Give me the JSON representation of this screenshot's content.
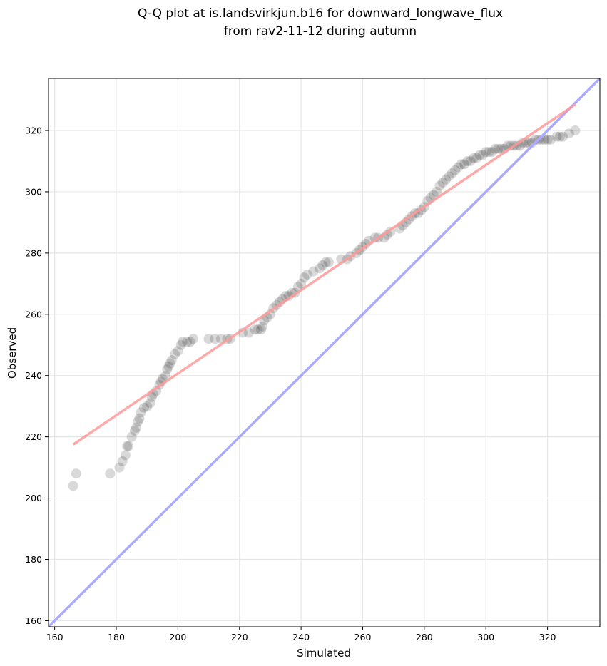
{
  "chart_data": {
    "type": "scatter",
    "title": [
      "Q-Q plot at is.landsvirkjun.b16 for downward_longwave_flux",
      "from rav2-11-12 during autumn"
    ],
    "xlabel": "Simulated",
    "ylabel": "Observed",
    "xlim": [
      158,
      337
    ],
    "ylim": [
      158,
      337
    ],
    "xticks": [
      160,
      180,
      200,
      220,
      240,
      260,
      280,
      300,
      320
    ],
    "yticks": [
      160,
      180,
      200,
      220,
      240,
      260,
      280,
      300,
      320
    ],
    "grid": true,
    "reference_line": {
      "name": "1:1 line",
      "color": "#aaaaff",
      "x": [
        158,
        337
      ],
      "y": [
        158,
        337
      ]
    },
    "fit_line": {
      "name": "linear fit",
      "color": "#ff9999",
      "x": [
        166,
        329
      ],
      "y": [
        217.5,
        328.5
      ]
    },
    "point_color": "#000000",
    "points": [
      [
        166,
        204
      ],
      [
        167,
        208
      ],
      [
        178,
        208
      ],
      [
        181,
        210
      ],
      [
        182,
        212
      ],
      [
        183,
        214
      ],
      [
        183.5,
        217
      ],
      [
        184,
        217
      ],
      [
        185,
        220
      ],
      [
        186,
        222
      ],
      [
        186.5,
        223
      ],
      [
        187,
        225
      ],
      [
        187.5,
        226
      ],
      [
        188,
        228
      ],
      [
        189,
        229.5
      ],
      [
        190,
        230
      ],
      [
        191,
        231
      ],
      [
        191.5,
        233
      ],
      [
        192,
        234
      ],
      [
        193,
        235
      ],
      [
        194,
        237
      ],
      [
        194.5,
        238
      ],
      [
        195,
        239
      ],
      [
        196,
        240
      ],
      [
        196.5,
        242
      ],
      [
        197,
        243
      ],
      [
        197.5,
        244
      ],
      [
        198,
        245
      ],
      [
        199,
        247
      ],
      [
        200,
        248
      ],
      [
        201,
        250
      ],
      [
        201.5,
        251
      ],
      [
        203,
        251
      ],
      [
        204,
        251
      ],
      [
        205,
        252
      ],
      [
        210,
        252
      ],
      [
        212,
        252
      ],
      [
        214,
        252
      ],
      [
        216,
        252
      ],
      [
        217,
        252
      ],
      [
        221,
        254
      ],
      [
        223,
        254
      ],
      [
        225,
        255
      ],
      [
        226,
        255
      ],
      [
        227,
        255
      ],
      [
        227.5,
        256
      ],
      [
        228,
        258
      ],
      [
        229,
        259
      ],
      [
        230,
        260
      ],
      [
        231,
        262
      ],
      [
        232,
        263
      ],
      [
        233,
        264
      ],
      [
        234,
        265
      ],
      [
        235,
        266
      ],
      [
        236,
        266
      ],
      [
        237,
        267
      ],
      [
        238,
        267
      ],
      [
        239,
        269
      ],
      [
        240,
        270
      ],
      [
        241,
        272
      ],
      [
        242,
        273
      ],
      [
        244,
        274
      ],
      [
        246,
        275
      ],
      [
        247,
        276
      ],
      [
        248,
        277
      ],
      [
        249,
        277
      ],
      [
        253,
        278
      ],
      [
        255,
        278
      ],
      [
        256,
        279
      ],
      [
        258,
        280
      ],
      [
        259,
        281
      ],
      [
        260,
        282
      ],
      [
        261,
        283
      ],
      [
        262,
        284
      ],
      [
        264,
        285
      ],
      [
        265,
        285
      ],
      [
        267,
        285
      ],
      [
        268,
        286
      ],
      [
        269,
        287
      ],
      [
        272,
        288
      ],
      [
        273,
        289
      ],
      [
        274,
        290
      ],
      [
        275,
        291
      ],
      [
        276,
        292
      ],
      [
        277,
        293
      ],
      [
        278,
        293
      ],
      [
        279,
        294
      ],
      [
        280,
        295
      ],
      [
        281,
        297
      ],
      [
        282,
        298
      ],
      [
        283,
        299
      ],
      [
        284,
        300
      ],
      [
        285,
        302
      ],
      [
        286,
        303
      ],
      [
        287,
        304
      ],
      [
        288,
        305
      ],
      [
        289,
        306
      ],
      [
        290,
        307
      ],
      [
        291,
        308
      ],
      [
        292,
        309
      ],
      [
        293,
        309
      ],
      [
        294,
        310
      ],
      [
        295,
        310
      ],
      [
        296,
        311
      ],
      [
        297,
        311
      ],
      [
        298,
        312
      ],
      [
        299,
        312
      ],
      [
        300,
        313
      ],
      [
        301,
        313
      ],
      [
        302,
        313
      ],
      [
        303,
        314
      ],
      [
        304,
        314
      ],
      [
        305,
        314
      ],
      [
        306,
        314
      ],
      [
        307,
        315
      ],
      [
        308,
        315
      ],
      [
        309,
        315
      ],
      [
        310,
        315
      ],
      [
        311,
        315
      ],
      [
        312,
        316
      ],
      [
        313,
        316
      ],
      [
        314,
        316
      ],
      [
        315,
        316
      ],
      [
        316,
        317
      ],
      [
        317,
        317
      ],
      [
        318,
        317
      ],
      [
        319,
        317
      ],
      [
        320,
        317
      ],
      [
        321,
        317
      ],
      [
        323,
        318
      ],
      [
        324,
        318
      ],
      [
        325,
        318
      ],
      [
        327,
        319
      ],
      [
        329,
        320
      ]
    ]
  }
}
